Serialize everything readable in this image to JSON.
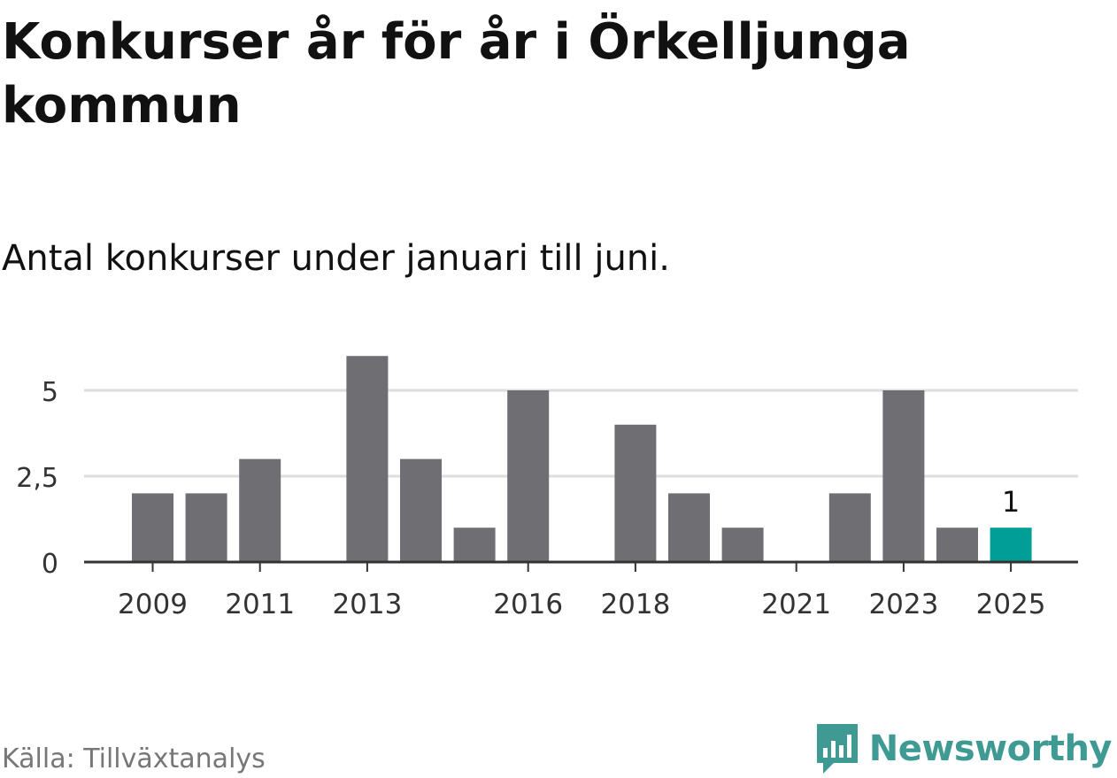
{
  "title": "Konkurser år för år i Örkelljunga kommun",
  "subtitle": "Antal konkurser under januari till juni.",
  "source": "Källa: Tillväxtanalys",
  "brand": {
    "name": "Newsworthy",
    "icon": "newsworthy-logo-icon",
    "color": "#3e9a93"
  },
  "colors": {
    "bar": "#6f6e73",
    "highlight": "#009e96",
    "grid": "#dddddd",
    "axis": "#333333"
  },
  "chart_data": {
    "type": "bar",
    "categories": [
      "2009",
      "2010",
      "2011",
      "2012",
      "2013",
      "2014",
      "2015",
      "2016",
      "2017",
      "2018",
      "2019",
      "2020",
      "2021",
      "2022",
      "2023",
      "2024",
      "2025"
    ],
    "values": [
      2,
      2,
      3,
      0,
      6,
      3,
      1,
      5,
      0,
      4,
      2,
      1,
      0,
      2,
      5,
      1,
      1
    ],
    "x_tick_labels": [
      "2009",
      "2011",
      "2013",
      "2016",
      "2018",
      "2021",
      "2023",
      "2025"
    ],
    "y_ticks": [
      0,
      2.5,
      5
    ],
    "y_tick_labels": [
      "0",
      "2,5",
      "5"
    ],
    "ylim": [
      0,
      6
    ],
    "highlight_category": "2025",
    "annotations": [
      {
        "category": "2025",
        "text": "1"
      }
    ],
    "grid": true,
    "legend": "none",
    "xlabel": "",
    "ylabel": ""
  }
}
